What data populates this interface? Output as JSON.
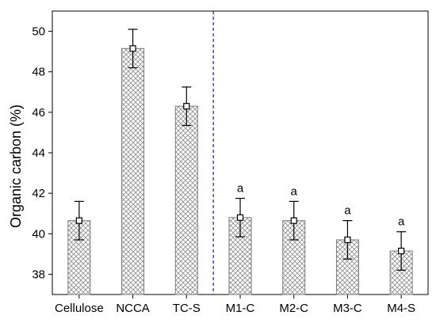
{
  "chart_data": {
    "type": "bar",
    "title": "",
    "xlabel": "",
    "ylabel": "Organic carbon (%)",
    "ylim": [
      37,
      51
    ],
    "yticks": [
      38,
      40,
      42,
      44,
      46,
      48,
      50
    ],
    "categories": [
      "Cellulose",
      "NCCA",
      "TC-S",
      "M1-C",
      "M2-C",
      "M3-C",
      "M4-S"
    ],
    "series": [
      {
        "values": [
          40.65,
          49.15,
          46.3,
          40.8,
          40.65,
          39.7,
          39.15
        ],
        "error": [
          0.95,
          0.95,
          0.95,
          0.95,
          0.95,
          0.95,
          0.95
        ]
      }
    ],
    "annotations": [
      "",
      "",
      "",
      "a",
      "a",
      "a",
      "a"
    ],
    "separator_after_category": "TC-S",
    "separator_style": "dashed-blue",
    "bar_fill": "crosshatch-gray",
    "grid": false,
    "colors": {
      "bar_stroke": "#7a7a7a",
      "hatch": "#8c8c8c",
      "separator": "#1f2fbf",
      "axis": "#000000"
    }
  }
}
